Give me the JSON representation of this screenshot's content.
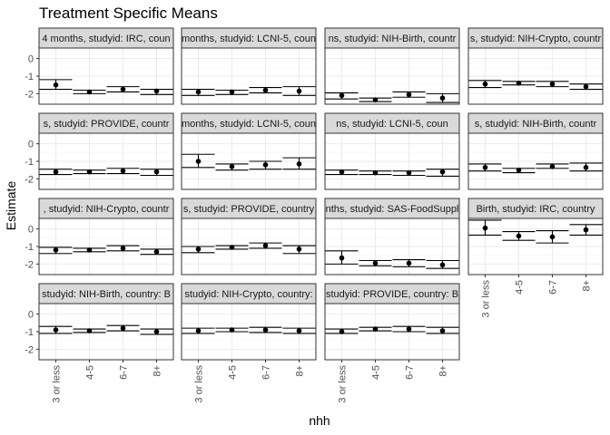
{
  "chart_data": {
    "type": "pointrange",
    "title": "Treatment Specific Means",
    "xlabel": "nhh",
    "ylabel": "Estimate",
    "categories": [
      "3 or less",
      "4-5",
      "6-7",
      "8+"
    ],
    "y_ticks": [
      "0",
      "-1",
      "-2"
    ],
    "ylim": [
      -2.6,
      0.6
    ],
    "facets": [
      {
        "strip": "4 months, studyid: IRC, coun",
        "estimate": [
          -1.5,
          -1.9,
          -1.75,
          -1.85
        ],
        "lower": [
          -1.75,
          -2.0,
          -1.9,
          -2.05
        ],
        "upper": [
          -1.2,
          -1.8,
          -1.6,
          -1.75
        ]
      },
      {
        "strip": "months, studyid: LCNI-5, coun",
        "estimate": [
          -1.9,
          -1.9,
          -1.8,
          -1.85
        ],
        "lower": [
          -2.1,
          -2.05,
          -1.95,
          -2.1
        ],
        "upper": [
          -1.75,
          -1.8,
          -1.65,
          -1.6
        ]
      },
      {
        "strip": "ns, studyid: NIH-Birth, countr",
        "estimate": [
          -2.1,
          -2.35,
          -2.05,
          -2.25
        ],
        "lower": [
          -2.3,
          -2.45,
          -2.2,
          -2.5
        ],
        "upper": [
          -1.95,
          -2.25,
          -1.9,
          -2.0
        ]
      },
      {
        "strip": "s, studyid: NIH-Crypto, countr",
        "estimate": [
          -1.45,
          -1.4,
          -1.45,
          -1.6
        ],
        "lower": [
          -1.65,
          -1.5,
          -1.6,
          -1.75
        ],
        "upper": [
          -1.25,
          -1.3,
          -1.3,
          -1.45
        ]
      },
      {
        "strip": "s, studyid: PROVIDE, countr",
        "estimate": [
          -1.6,
          -1.6,
          -1.55,
          -1.6
        ],
        "lower": [
          -1.75,
          -1.7,
          -1.7,
          -1.8
        ],
        "upper": [
          -1.45,
          -1.5,
          -1.4,
          -1.45
        ]
      },
      {
        "strip": "months, studyid: LCNI-5, coun",
        "estimate": [
          -1.0,
          -1.3,
          -1.2,
          -1.15
        ],
        "lower": [
          -1.35,
          -1.5,
          -1.45,
          -1.45
        ],
        "upper": [
          -0.6,
          -1.15,
          -1.0,
          -0.8
        ]
      },
      {
        "strip": "ns, studyid: LCNI-5, coun",
        "estimate": [
          -1.6,
          -1.65,
          -1.65,
          -1.6
        ],
        "lower": [
          -1.75,
          -1.75,
          -1.8,
          -1.85
        ],
        "upper": [
          -1.5,
          -1.55,
          -1.55,
          -1.45
        ]
      },
      {
        "strip": "s, studyid: NIH-Birth, countr",
        "estimate": [
          -1.35,
          -1.5,
          -1.3,
          -1.35
        ],
        "lower": [
          -1.55,
          -1.65,
          -1.4,
          -1.55
        ],
        "upper": [
          -1.15,
          -1.4,
          -1.15,
          -1.1
        ]
      },
      {
        "strip": ", studyid: NIH-Crypto, countr",
        "estimate": [
          -1.2,
          -1.2,
          -1.1,
          -1.3
        ],
        "lower": [
          -1.4,
          -1.3,
          -1.25,
          -1.45
        ],
        "upper": [
          -1.05,
          -1.1,
          -0.95,
          -1.15
        ]
      },
      {
        "strip": "s, studyid: PROVIDE, country",
        "estimate": [
          -1.15,
          -1.05,
          -0.95,
          -1.15
        ],
        "lower": [
          -1.35,
          -1.15,
          -1.1,
          -1.4
        ],
        "upper": [
          -1.0,
          -0.95,
          -0.8,
          -0.95
        ]
      },
      {
        "strip": "nths, studyid: SAS-FoodSuppl",
        "estimate": [
          -1.65,
          -1.95,
          -1.95,
          -2.05
        ],
        "lower": [
          -2.0,
          -2.1,
          -2.15,
          -2.25
        ],
        "upper": [
          -1.25,
          -1.8,
          -1.75,
          -1.8
        ]
      },
      {
        "strip": "Birth, studyid: IRC, country",
        "estimate": [
          0.05,
          -0.4,
          -0.45,
          -0.05
        ],
        "lower": [
          -0.35,
          -0.65,
          -0.8,
          -0.35
        ],
        "upper": [
          0.5,
          -0.15,
          -0.1,
          0.25
        ]
      },
      {
        "strip": "studyid: NIH-Birth, country: B",
        "estimate": [
          -0.9,
          -0.95,
          -0.8,
          -1.0
        ],
        "lower": [
          -1.1,
          -1.05,
          -0.95,
          -1.15
        ],
        "upper": [
          -0.7,
          -0.85,
          -0.65,
          -0.85
        ]
      },
      {
        "strip": "studyid: NIH-Crypto, country:",
        "estimate": [
          -0.95,
          -0.9,
          -0.9,
          -0.95
        ],
        "lower": [
          -1.1,
          -1.0,
          -1.05,
          -1.1
        ],
        "upper": [
          -0.8,
          -0.8,
          -0.75,
          -0.8
        ]
      },
      {
        "strip": "studyid: PROVIDE, country: B",
        "estimate": [
          -1.0,
          -0.85,
          -0.85,
          -0.95
        ],
        "lower": [
          -1.1,
          -0.95,
          -1.0,
          -1.1
        ],
        "upper": [
          -0.85,
          -0.75,
          -0.7,
          -0.75
        ]
      }
    ]
  }
}
